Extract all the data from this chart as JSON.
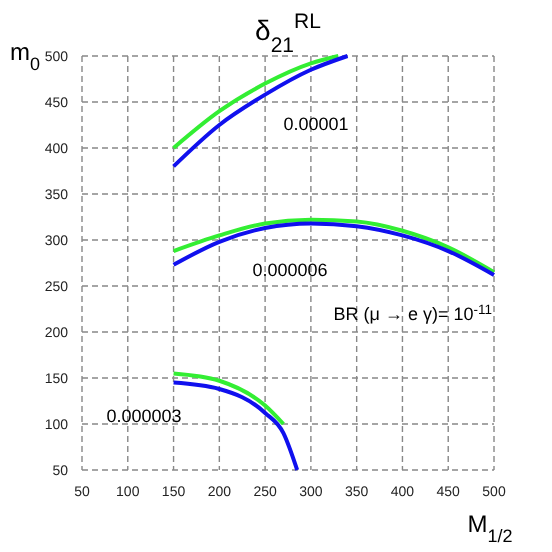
{
  "chart_data": {
    "type": "line",
    "title": "δ$_{21}$$^{RL}$",
    "xlabel": "M$_{1/2}$",
    "ylabel": "m$_{0}$",
    "xlim": [
      50,
      500
    ],
    "ylim": [
      50,
      500
    ],
    "xticks": [
      50,
      100,
      150,
      200,
      250,
      300,
      350,
      400,
      450,
      500
    ],
    "yticks": [
      50,
      100,
      150,
      200,
      250,
      300,
      350,
      400,
      450,
      500
    ],
    "grid": true,
    "line_style": "solid",
    "marker": "none",
    "series": [
      {
        "color": "#33ee33",
        "x": [
          150,
          200,
          250,
          300,
          330
        ],
        "values": [
          400,
          440,
          470,
          492,
          500
        ]
      },
      {
        "color": "#1010ee",
        "x": [
          150,
          200,
          250,
          300,
          340
        ],
        "values": [
          380,
          425,
          458,
          485,
          500
        ]
      },
      {
        "color": "#33ee33",
        "x": [
          150,
          200,
          250,
          300,
          350,
          400,
          450,
          500
        ],
        "values": [
          288,
          305,
          318,
          322,
          320,
          310,
          292,
          265
        ]
      },
      {
        "color": "#1010ee",
        "x": [
          150,
          200,
          250,
          300,
          350,
          400,
          450,
          500
        ],
        "values": [
          273,
          298,
          313,
          318,
          315,
          305,
          288,
          262
        ]
      },
      {
        "color": "#33ee33",
        "x": [
          150,
          200,
          250,
          270
        ],
        "values": [
          155,
          147,
          120,
          100
        ]
      },
      {
        "color": "#1010ee",
        "x": [
          150,
          200,
          250,
          270,
          285
        ],
        "values": [
          145,
          138,
          112,
          90,
          50
        ]
      }
    ],
    "annotations": [
      "0.00001",
      "0.000006",
      "0.000003",
      "BR (μ → e γ)= 10$^{-11}$"
    ]
  }
}
